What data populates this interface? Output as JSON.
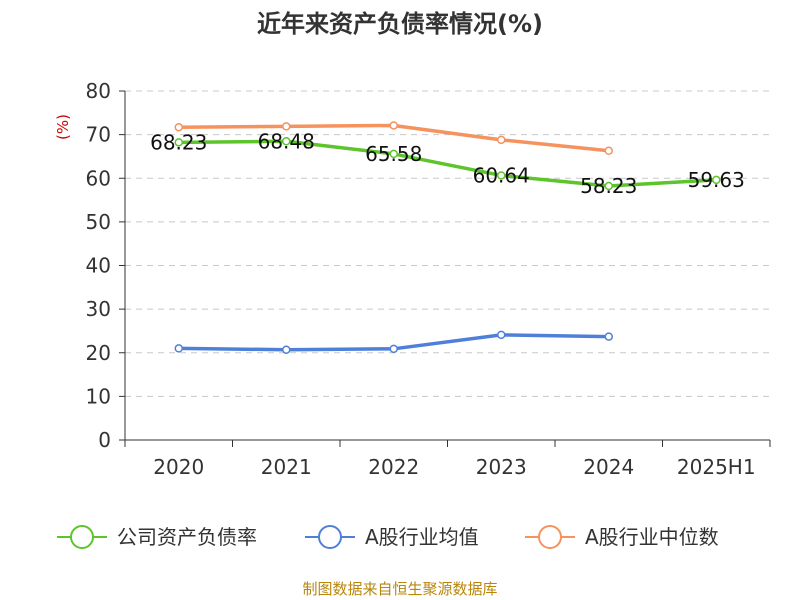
{
  "chart_data": {
    "type": "line",
    "title": "近年来资产负债率情况(%)",
    "ylabel": "(%)",
    "ylim": [
      0,
      80
    ],
    "yticks": [
      "0",
      "10",
      "20",
      "30",
      "40",
      "50",
      "60",
      "70",
      "80"
    ],
    "grid": true,
    "categories": [
      "2020",
      "2021",
      "2022",
      "2023",
      "2024",
      "2025H1"
    ],
    "series": [
      {
        "name": "公司资产负债率",
        "color": "#5ec42b",
        "values": [
          68.23,
          68.48,
          65.58,
          60.64,
          58.23,
          59.63
        ],
        "labels": [
          "68.23",
          "68.48",
          "65.58",
          "60.64",
          "58.23",
          "59.63"
        ]
      },
      {
        "name": "A股行业均值",
        "color": "#4f80d9",
        "values": [
          21.0,
          20.7,
          20.9,
          24.1,
          23.7,
          null
        ]
      },
      {
        "name": "A股行业中位数",
        "color": "#f5925e",
        "values": [
          71.7,
          71.9,
          72.1,
          68.8,
          66.3,
          null
        ]
      }
    ],
    "legend_position": "bottom",
    "footer": "制图数据来自恒生聚源数据库"
  }
}
